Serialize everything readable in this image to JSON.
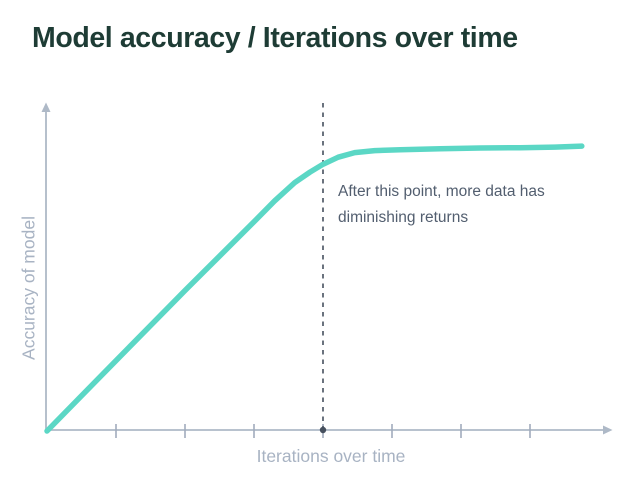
{
  "header": {
    "title": "Model accuracy / Iterations over time"
  },
  "chart_data": {
    "type": "line",
    "title": "Model accuracy / Iterations over time",
    "xlabel": "Iterations over time",
    "ylabel": "Accuracy of model",
    "axes": {
      "x_range": [
        0,
        8.2
      ],
      "y_range": [
        0,
        1
      ],
      "x_ticks": [
        1,
        2,
        3,
        4,
        5,
        6,
        7
      ],
      "tick_labels_shown": false,
      "grid": false,
      "style": "arrow-axes"
    },
    "series": [
      {
        "name": "Model accuracy",
        "color": "#5bd7c5",
        "x": [
          0,
          1.01,
          2.01,
          3.01,
          3.3,
          3.59,
          3.81,
          3.99,
          4.22,
          4.46,
          4.75,
          5.12,
          5.7,
          6.28,
          6.86,
          7.36,
          7.75
        ],
        "y": [
          0,
          0.218,
          0.433,
          0.644,
          0.706,
          0.762,
          0.794,
          0.817,
          0.84,
          0.854,
          0.86,
          0.863,
          0.866,
          0.868,
          0.869,
          0.871,
          0.874
        ]
      }
    ],
    "annotations": [
      {
        "type": "dashed-vertical-line-with-dot-on-axis",
        "x": 4
      },
      {
        "type": "text",
        "lines": [
          "After this point, more data has",
          "diminishing returns"
        ]
      }
    ],
    "legend": {
      "shown": false
    }
  },
  "colors": {
    "title": "#1e3c35",
    "curve": "#5bd7c5",
    "axis": "#aeb9c7",
    "tick": "#a2acbc",
    "axis_label": "#a8b3c3",
    "dashed": "#46505e",
    "dot": "#46505e",
    "annotation_text": "#525e6f",
    "background": "#ffffff"
  }
}
